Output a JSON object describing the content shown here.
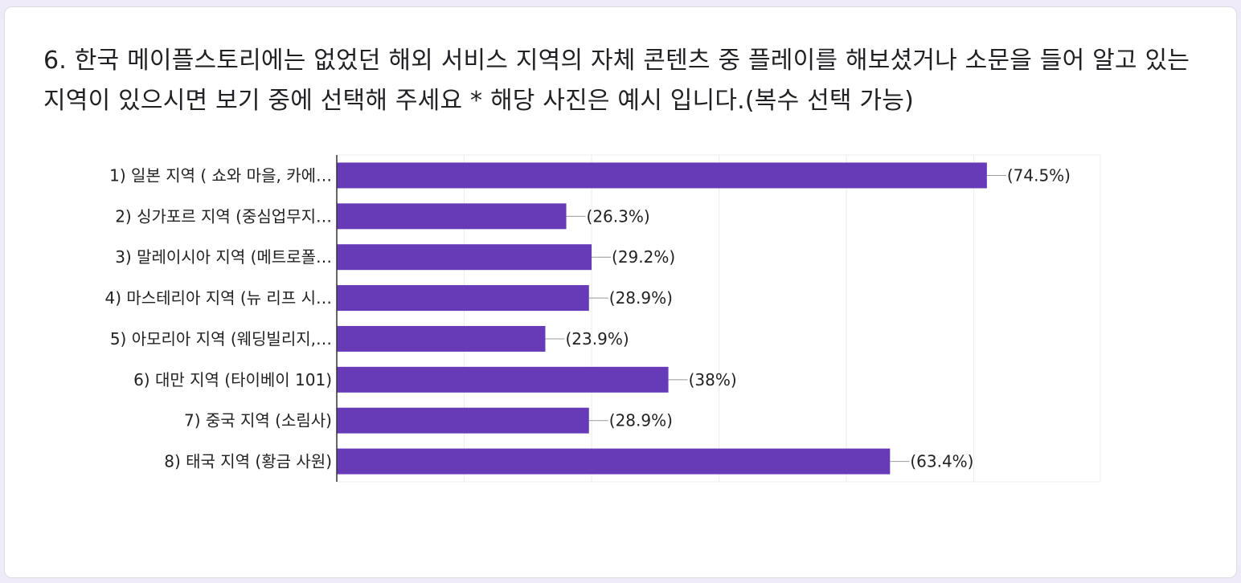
{
  "question": {
    "title": "6. 한국 메이플스토리에는 없었던 해외 서비스 지역의 자체 콘텐츠 중 플레이를 해보셨거나 소문을 들어 알고 있는 지역이 있으시면 보기 중에 선택해 주세요 * 해당 사진은 예시 입니다.(복수 선택 가능)"
  },
  "chart_data": {
    "type": "bar",
    "orientation": "horizontal",
    "categories": [
      "1) 일본 지역 ( 쇼와 마을, 카에…",
      "2) 싱가포르 지역 (중심업무지…",
      "3) 말레이시아 지역 (메트로폴…",
      "4) 마스테리아 지역 (뉴 리프 시…",
      "5) 아모리아 지역 (웨딩빌리지,…",
      "6) 대만 지역 (타이베이 101)",
      "7) 중국 지역 (소림사)",
      "8) 태국 지역 (황금 사원)"
    ],
    "values": [
      74.5,
      26.3,
      29.2,
      28.9,
      23.9,
      38,
      28.9,
      63.4
    ],
    "value_labels": [
      "(74.5%)",
      "(26.3%)",
      "(29.2%)",
      "(28.9%)",
      "(23.9%)",
      "(38%)",
      "(28.9%)",
      "(63.4%)"
    ],
    "xlim": [
      0,
      87.5
    ],
    "gridlines": [
      0,
      14.6,
      29.2,
      43.8,
      58.4,
      73,
      87.5
    ],
    "grid": true,
    "legend": "none",
    "bar_color": "#673ab7"
  }
}
